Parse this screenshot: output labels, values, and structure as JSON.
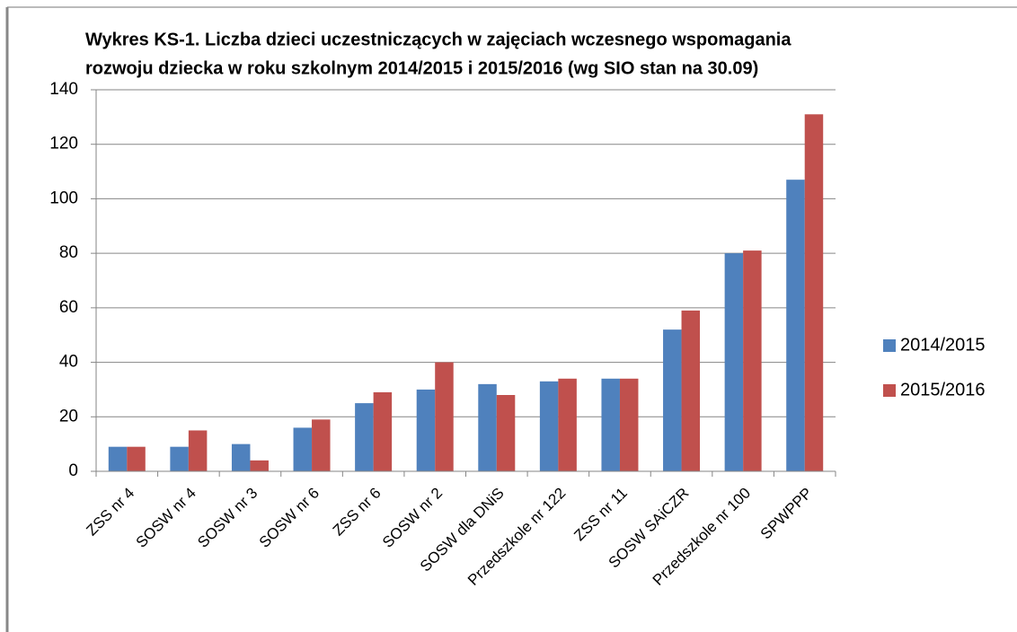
{
  "chart_data": {
    "type": "bar",
    "title": [
      "Wykres KS-1. Liczba dzieci uczestniczących w zajęciach wczesnego wspomagania",
      "rozwoju dziecka w roku szkolnym 2014/2015 i 2015/2016 (wg SIO stan na 30.09)"
    ],
    "categories": [
      "ZSS nr 4",
      "SOSW nr 4",
      "SOSW nr 3",
      "SOSW nr 6",
      "ZSS nr 6",
      "SOSW nr 2",
      "SOSW dla DNiS",
      "Przedszkole nr 122",
      "ZSS nr 11",
      "SOSW SAiCZR",
      "Przedszkole nr 100",
      "SPWPPP"
    ],
    "series": [
      {
        "name": "2014/2015",
        "color": "#4f81bd",
        "values": [
          9,
          9,
          10,
          16,
          25,
          30,
          32,
          33,
          34,
          52,
          80,
          107
        ]
      },
      {
        "name": "2015/2016",
        "color": "#c0504d",
        "values": [
          9,
          15,
          4,
          19,
          29,
          40,
          28,
          34,
          34,
          59,
          81,
          131
        ]
      }
    ],
    "ylim": [
      0,
      140
    ],
    "yticks": [
      0,
      20,
      40,
      60,
      80,
      100,
      120,
      140
    ],
    "grid": true,
    "legend": "right"
  }
}
